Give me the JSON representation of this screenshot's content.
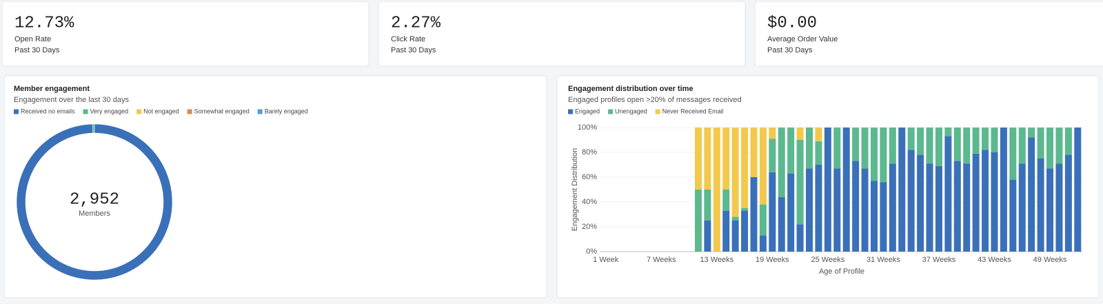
{
  "cards": [
    {
      "value": "12.73%",
      "label": "Open Rate",
      "period": "Past 30 Days"
    },
    {
      "value": "2.27%",
      "label": "Click Rate",
      "period": "Past 30 Days"
    },
    {
      "value": "$0.00",
      "label": "Average Order Value",
      "period": "Past 30 Days"
    }
  ],
  "chart_data": [
    {
      "type": "donut",
      "title": "Member engagement",
      "subtitle": "Engagement over the last 30 days",
      "categories": [
        "Received no emails",
        "Very engaged",
        "Not engaged",
        "Somewhat engaged",
        "Barely engaged"
      ],
      "values": [
        2940,
        12,
        0,
        0,
        0
      ],
      "colors": [
        "#3a70b8",
        "#5cb88f",
        "#f2c94c",
        "#e0884a",
        "#4e9ee0"
      ],
      "center_value": "2,952",
      "center_label": "Members",
      "legend": "top"
    },
    {
      "type": "stacked-bar",
      "title": "Engagement distribution over time",
      "subtitle": "Engaged profiles open >20% of messages received",
      "categories": [
        "1 Week",
        null,
        null,
        null,
        null,
        null,
        "7 Weeks",
        null,
        null,
        null,
        null,
        null,
        "13 Weeks",
        null,
        null,
        null,
        null,
        null,
        "19 Weeks",
        null,
        null,
        null,
        null,
        null,
        "25 Weeks",
        null,
        null,
        null,
        null,
        null,
        "31 Weeks",
        null,
        null,
        null,
        null,
        null,
        "37 Weeks",
        null,
        null,
        null,
        null,
        null,
        "43 Weeks",
        null,
        null,
        null,
        null,
        null,
        "49 Weeks",
        null,
        null,
        null
      ],
      "series": [
        {
          "name": "Engaged",
          "color": "#3a70b8",
          "values": [
            null,
            null,
            null,
            null,
            null,
            null,
            null,
            null,
            null,
            null,
            0,
            25,
            0,
            33,
            25,
            33,
            60,
            13,
            64,
            44,
            63,
            22,
            67,
            70,
            100,
            67,
            100,
            73,
            67,
            57,
            56,
            71,
            100,
            82,
            78,
            71,
            69,
            93,
            73,
            71,
            79,
            82,
            80,
            100,
            58,
            71,
            92,
            75,
            67,
            71,
            78,
            100
          ]
        },
        {
          "name": "Unengaged",
          "color": "#5cb88f",
          "values": [
            null,
            null,
            null,
            null,
            null,
            null,
            null,
            null,
            null,
            null,
            50,
            25,
            0,
            17,
            3,
            2,
            0,
            25,
            27,
            56,
            37,
            68,
            33,
            19,
            0,
            33,
            0,
            27,
            33,
            43,
            44,
            29,
            0,
            18,
            22,
            29,
            31,
            7,
            27,
            29,
            21,
            18,
            20,
            0,
            42,
            29,
            8,
            25,
            33,
            29,
            22,
            0
          ]
        },
        {
          "name": "Never Received Email",
          "color": "#f2c94c",
          "values": [
            null,
            null,
            null,
            null,
            null,
            null,
            null,
            null,
            null,
            null,
            50,
            50,
            100,
            50,
            72,
            65,
            40,
            62,
            9,
            0,
            0,
            10,
            0,
            11,
            0,
            0,
            0,
            0,
            0,
            0,
            0,
            0,
            0,
            0,
            0,
            0,
            0,
            0,
            0,
            0,
            0,
            0,
            0,
            0,
            0,
            0,
            0,
            0,
            0,
            0,
            0,
            0
          ]
        }
      ],
      "ylim": [
        0,
        100
      ],
      "yticks": [
        {
          "value": 0,
          "label": "0%"
        },
        {
          "value": 20,
          "label": "20%"
        },
        {
          "value": 40,
          "label": "40%"
        },
        {
          "value": 60,
          "label": "60%"
        },
        {
          "value": 80,
          "label": "80%"
        },
        {
          "value": 100,
          "label": "100%"
        }
      ],
      "y_label": "Engagement Distribution",
      "x_label": "Age of Profile",
      "grid": true,
      "legend": "top"
    }
  ]
}
